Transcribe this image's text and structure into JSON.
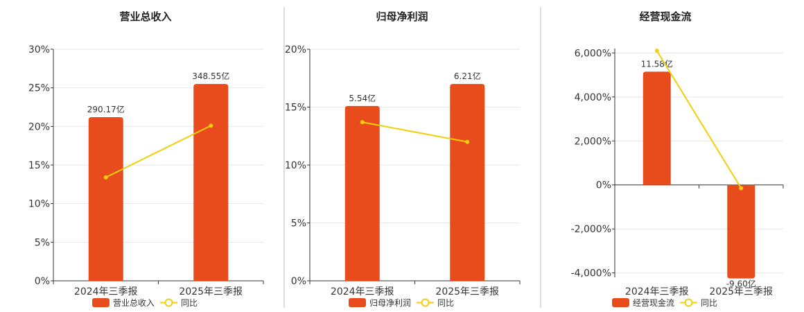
{
  "colors": {
    "bar": "#e84c1c",
    "line": "#f2cf0a",
    "grid": "#e6e6e6",
    "axis": "#333333"
  },
  "chart_data": [
    {
      "type": "bar",
      "title": "营业总收入",
      "categories": [
        "2024年三季报",
        "2025年三季报"
      ],
      "series": [
        {
          "name": "营业总收入",
          "type": "bar",
          "values": [
            21.2,
            25.5
          ],
          "labels": [
            "290.17亿",
            "348.55亿"
          ]
        },
        {
          "name": "同比",
          "type": "line",
          "values": [
            13.4,
            20.1
          ]
        }
      ],
      "ylim": [
        0,
        30
      ],
      "yticks": [
        0,
        5,
        10,
        15,
        20,
        25,
        30
      ],
      "ytick_labels": [
        "0%",
        "5%",
        "10%",
        "15%",
        "20%",
        "25%",
        "30%"
      ],
      "grid": true,
      "legend": "bottom"
    },
    {
      "type": "bar",
      "title": "归母净利润",
      "categories": [
        "2024年三季报",
        "2025年三季报"
      ],
      "series": [
        {
          "name": "归母净利润",
          "type": "bar",
          "values": [
            15.1,
            17.0
          ],
          "labels": [
            "5.54亿",
            "6.21亿"
          ]
        },
        {
          "name": "同比",
          "type": "line",
          "values": [
            13.7,
            12.0
          ]
        }
      ],
      "ylim": [
        0,
        20
      ],
      "yticks": [
        0,
        5,
        10,
        15,
        20
      ],
      "ytick_labels": [
        "0%",
        "5%",
        "10%",
        "15%",
        "20%"
      ],
      "grid": true,
      "legend": "bottom"
    },
    {
      "type": "bar",
      "title": "经营现金流",
      "categories": [
        "2024年三季报",
        "2025年三季报"
      ],
      "series": [
        {
          "name": "经营现金流",
          "type": "bar",
          "values": [
            5150,
            -4250
          ],
          "labels": [
            "11.58亿",
            "-9.60亿"
          ]
        },
        {
          "name": "同比",
          "type": "line",
          "values": [
            6100,
            -150
          ]
        }
      ],
      "ylim": [
        -4200,
        6200
      ],
      "yticks": [
        -4000,
        -2000,
        0,
        2000,
        4000,
        6000
      ],
      "ytick_labels": [
        "-4,000%",
        "-2,000%",
        "0%",
        "2,000%",
        "4,000%",
        "6,000%"
      ],
      "grid": true,
      "legend": "bottom"
    }
  ]
}
